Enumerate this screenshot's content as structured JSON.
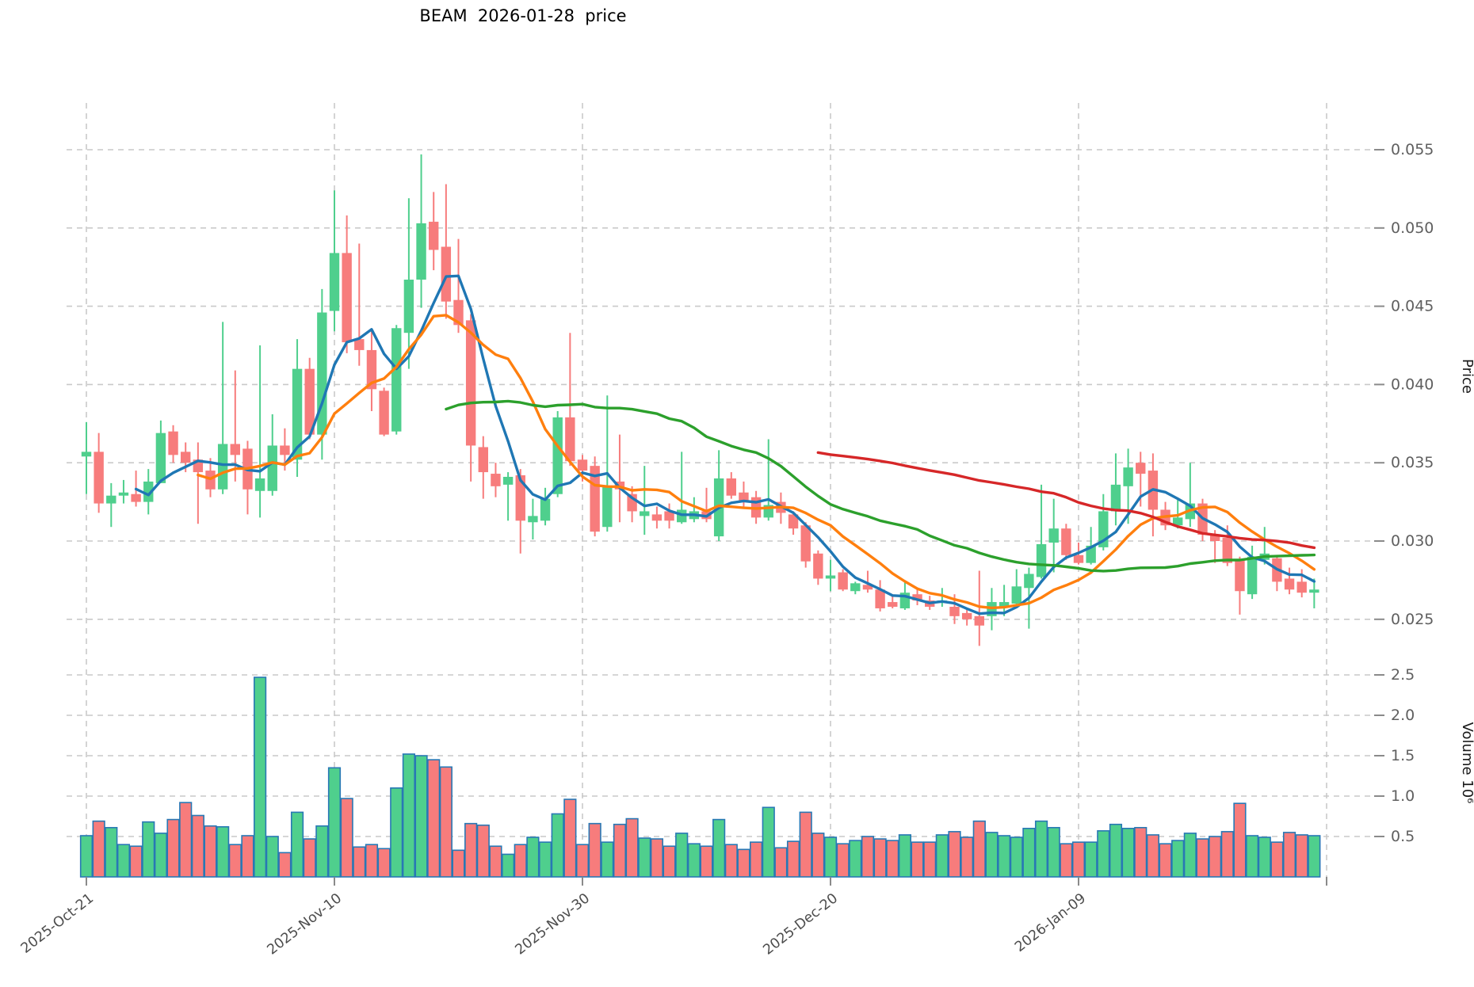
{
  "title": "BEAM  2026-01-28  price",
  "axes": {
    "price_axis_label": "Price",
    "volume_axis_label": "Volume  10⁶",
    "price_ticks": [
      {
        "label": "0.055",
        "value": 0.055
      },
      {
        "label": "0.050",
        "value": 0.05
      },
      {
        "label": "0.045",
        "value": 0.045
      },
      {
        "label": "0.040",
        "value": 0.04
      },
      {
        "label": "0.035",
        "value": 0.035
      },
      {
        "label": "0.030",
        "value": 0.03
      },
      {
        "label": "0.025",
        "value": 0.025
      }
    ],
    "volume_ticks": [
      {
        "label": "2.5",
        "value": 2.5
      },
      {
        "label": "2.0",
        "value": 2.0
      },
      {
        "label": "1.5",
        "value": 1.5
      },
      {
        "label": "1.0",
        "value": 1.0
      },
      {
        "label": "0.5",
        "value": 0.5
      }
    ],
    "x_ticks": [
      {
        "label": "2025-Oct-21",
        "day": 0
      },
      {
        "label": "2025-Nov-10",
        "day": 20
      },
      {
        "label": "2025-Nov-30",
        "day": 40
      },
      {
        "label": "2025-Dec-20",
        "day": 60
      },
      {
        "label": "2026-Jan-09",
        "day": 80
      },
      {
        "label": "",
        "day": 100
      }
    ]
  },
  "colors": {
    "up": "#4fcf8d",
    "down": "#f77c7c",
    "volume_bar_edge": "#2878b5",
    "ma5": "#1f77b4",
    "ma10": "#ff7f0e",
    "ma30": "#2ca02c",
    "ma60": "#d62728",
    "grid": "#c9c9c9",
    "tick_text": "#5f5f5f",
    "axis_title_text": "#1a1a1a"
  },
  "chart_data": {
    "type": "candlestick-with-volume",
    "symbol": "BEAM",
    "title": "BEAM  2026-01-28  price",
    "x_start_label": "2025-Oct-21",
    "x_end_label": "2026-01-28",
    "num_days": 100,
    "price_ylim": [
      0.0231,
      0.058
    ],
    "volume_ylim": [
      0,
      2.85
    ],
    "volume_unit": "10^6",
    "grid": "dashed",
    "open": [
      0.0354,
      0.0357,
      0.0324,
      0.0329,
      0.033,
      0.0325,
      0.0337,
      0.037,
      0.0357,
      0.0352,
      0.0345,
      0.0333,
      0.0362,
      0.0359,
      0.0332,
      0.0332,
      0.0361,
      0.0352,
      0.041,
      0.0368,
      0.0447,
      0.0484,
      0.0429,
      0.0422,
      0.0396,
      0.037,
      0.0433,
      0.0467,
      0.0504,
      0.0488,
      0.0454,
      0.0441,
      0.036,
      0.0343,
      0.0336,
      0.0342,
      0.0312,
      0.0313,
      0.033,
      0.0379,
      0.0352,
      0.0348,
      0.0309,
      0.0338,
      0.033,
      0.0316,
      0.0317,
      0.0319,
      0.0312,
      0.0314,
      0.0319,
      0.0303,
      0.034,
      0.0331,
      0.0328,
      0.0315,
      0.0325,
      0.0317,
      0.031,
      0.0292,
      0.0276,
      0.028,
      0.0268,
      0.0272,
      0.0269,
      0.0261,
      0.0257,
      0.0266,
      0.0262,
      0.0261,
      0.0258,
      0.0254,
      0.0252,
      0.0252,
      0.0258,
      0.026,
      0.027,
      0.0277,
      0.0299,
      0.0308,
      0.0291,
      0.0286,
      0.0296,
      0.0319,
      0.0335,
      0.035,
      0.0345,
      0.032,
      0.031,
      0.0314,
      0.0324,
      0.0304,
      0.0302,
      0.0288,
      0.0266,
      0.0288,
      0.0289,
      0.0276,
      0.0274,
      0.0267
    ],
    "high": [
      0.0376,
      0.0369,
      0.0337,
      0.0339,
      0.0345,
      0.0346,
      0.0377,
      0.0374,
      0.0363,
      0.0363,
      0.0353,
      0.044,
      0.0409,
      0.0364,
      0.0425,
      0.0381,
      0.0372,
      0.0429,
      0.0417,
      0.0461,
      0.0524,
      0.0508,
      0.049,
      0.0434,
      0.0398,
      0.0438,
      0.0519,
      0.0547,
      0.0523,
      0.0528,
      0.0493,
      0.0445,
      0.0367,
      0.035,
      0.0344,
      0.0346,
      0.0327,
      0.0334,
      0.0383,
      0.0433,
      0.0355,
      0.0354,
      0.0393,
      0.0368,
      0.0335,
      0.0348,
      0.0322,
      0.0324,
      0.0357,
      0.0328,
      0.0334,
      0.0358,
      0.0344,
      0.0338,
      0.0332,
      0.0365,
      0.0331,
      0.0319,
      0.0312,
      0.0294,
      0.0288,
      0.0282,
      0.0274,
      0.0281,
      0.0275,
      0.0266,
      0.0275,
      0.0269,
      0.0265,
      0.027,
      0.0266,
      0.0257,
      0.0281,
      0.027,
      0.0272,
      0.0282,
      0.0283,
      0.0336,
      0.0327,
      0.0311,
      0.0299,
      0.0309,
      0.033,
      0.0356,
      0.0359,
      0.0357,
      0.0356,
      0.0325,
      0.0327,
      0.035,
      0.0327,
      0.0307,
      0.031,
      0.029,
      0.0297,
      0.0309,
      0.0291,
      0.0283,
      0.0282,
      0.0276
    ],
    "low": [
      0.033,
      0.0318,
      0.0309,
      0.0324,
      0.0322,
      0.0317,
      0.0337,
      0.035,
      0.0344,
      0.0311,
      0.0328,
      0.033,
      0.0338,
      0.0317,
      0.0315,
      0.0329,
      0.0345,
      0.0341,
      0.0365,
      0.0352,
      0.0434,
      0.042,
      0.0412,
      0.0383,
      0.0367,
      0.0368,
      0.041,
      0.0449,
      0.0473,
      0.0442,
      0.0433,
      0.0338,
      0.0327,
      0.0328,
      0.0313,
      0.0292,
      0.0301,
      0.031,
      0.0328,
      0.0348,
      0.0338,
      0.0303,
      0.0306,
      0.0312,
      0.0312,
      0.0304,
      0.0308,
      0.0308,
      0.0311,
      0.0312,
      0.0312,
      0.03,
      0.0327,
      0.0322,
      0.0311,
      0.0313,
      0.0311,
      0.0304,
      0.0283,
      0.0272,
      0.0268,
      0.0268,
      0.0266,
      0.0267,
      0.0255,
      0.0257,
      0.0256,
      0.0259,
      0.0256,
      0.0258,
      0.0247,
      0.0246,
      0.0233,
      0.0243,
      0.0252,
      0.0258,
      0.0244,
      0.0276,
      0.028,
      0.0288,
      0.0285,
      0.0285,
      0.0294,
      0.031,
      0.0311,
      0.0322,
      0.0303,
      0.0307,
      0.0308,
      0.0309,
      0.03,
      0.0286,
      0.0284,
      0.0253,
      0.0263,
      0.0285,
      0.0268,
      0.0266,
      0.0264,
      0.0257
    ],
    "close": [
      0.0357,
      0.0324,
      0.0329,
      0.0331,
      0.0325,
      0.0338,
      0.0369,
      0.0355,
      0.035,
      0.0344,
      0.0333,
      0.0362,
      0.0355,
      0.0333,
      0.034,
      0.0361,
      0.0355,
      0.041,
      0.0368,
      0.0446,
      0.0484,
      0.0427,
      0.0422,
      0.0397,
      0.0368,
      0.0436,
      0.0467,
      0.0503,
      0.0486,
      0.0453,
      0.0438,
      0.0361,
      0.0344,
      0.0335,
      0.0341,
      0.0313,
      0.0316,
      0.0327,
      0.0379,
      0.0351,
      0.0345,
      0.0306,
      0.0335,
      0.0333,
      0.0319,
      0.0319,
      0.0313,
      0.0313,
      0.032,
      0.0319,
      0.0314,
      0.034,
      0.0329,
      0.0326,
      0.0315,
      0.0323,
      0.0318,
      0.0308,
      0.0287,
      0.0276,
      0.0278,
      0.0269,
      0.0273,
      0.0269,
      0.0257,
      0.0258,
      0.0267,
      0.0262,
      0.0258,
      0.0262,
      0.0252,
      0.025,
      0.0246,
      0.0261,
      0.0261,
      0.0271,
      0.0279,
      0.0298,
      0.0308,
      0.0291,
      0.0286,
      0.0297,
      0.0319,
      0.0336,
      0.0347,
      0.0343,
      0.032,
      0.031,
      0.0315,
      0.0324,
      0.0304,
      0.03,
      0.0286,
      0.0268,
      0.029,
      0.0292,
      0.0274,
      0.0269,
      0.0267,
      0.0269
    ],
    "volume": [
      0.51,
      0.69,
      0.61,
      0.4,
      0.38,
      0.68,
      0.54,
      0.71,
      0.92,
      0.76,
      0.63,
      0.62,
      0.4,
      0.51,
      2.47,
      0.5,
      0.3,
      0.8,
      0.47,
      0.63,
      1.35,
      0.97,
      0.37,
      0.4,
      0.35,
      1.1,
      1.52,
      1.5,
      1.45,
      1.36,
      0.33,
      0.66,
      0.64,
      0.38,
      0.28,
      0.4,
      0.49,
      0.43,
      0.78,
      0.96,
      0.4,
      0.66,
      0.43,
      0.65,
      0.72,
      0.48,
      0.47,
      0.38,
      0.54,
      0.41,
      0.38,
      0.71,
      0.4,
      0.34,
      0.43,
      0.86,
      0.36,
      0.44,
      0.8,
      0.54,
      0.49,
      0.41,
      0.45,
      0.5,
      0.47,
      0.45,
      0.52,
      0.43,
      0.43,
      0.52,
      0.56,
      0.49,
      0.69,
      0.55,
      0.51,
      0.49,
      0.6,
      0.69,
      0.61,
      0.41,
      0.43,
      0.43,
      0.57,
      0.65,
      0.6,
      0.61,
      0.52,
      0.41,
      0.45,
      0.54,
      0.47,
      0.5,
      0.56,
      0.91,
      0.51,
      0.49,
      0.43,
      0.55,
      0.52,
      0.51
    ],
    "ma_lines": [
      {
        "name": "MA5",
        "window": 5,
        "color_key": "ma5"
      },
      {
        "name": "MA10",
        "window": 10,
        "color_key": "ma10"
      },
      {
        "name": "MA30",
        "window": 30,
        "color_key": "ma30"
      },
      {
        "name": "MA60",
        "window": 60,
        "color_key": "ma60"
      }
    ]
  }
}
